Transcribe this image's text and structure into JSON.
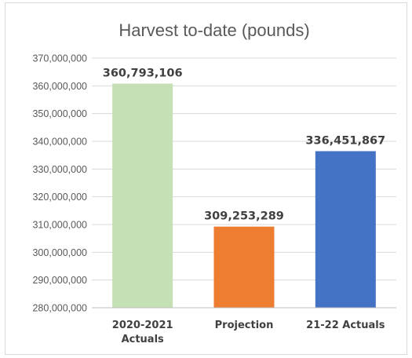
{
  "chart_data": {
    "type": "bar",
    "title": "Harvest to-date (pounds)",
    "xlabel": "",
    "ylabel": "",
    "categories": [
      "2020-2021 Actuals",
      "Projection",
      "21-22 Actuals"
    ],
    "category_lines": [
      [
        "2020-2021",
        "Actuals"
      ],
      [
        "Projection"
      ],
      [
        "21-22 Actuals"
      ]
    ],
    "values": [
      360793106,
      309253289,
      336451867
    ],
    "data_labels": [
      "360,793,106",
      "309,253,289",
      "336,451,867"
    ],
    "colors": [
      "#c5e0b4",
      "#ed7d31",
      "#4472c4"
    ],
    "ylim": [
      280000000,
      370000000
    ],
    "ytick_step": 10000000,
    "yticks": [
      "280,000,000",
      "290,000,000",
      "300,000,000",
      "310,000,000",
      "320,000,000",
      "330,000,000",
      "340,000,000",
      "350,000,000",
      "360,000,000",
      "370,000,000"
    ],
    "grid": true,
    "legend": "none"
  }
}
